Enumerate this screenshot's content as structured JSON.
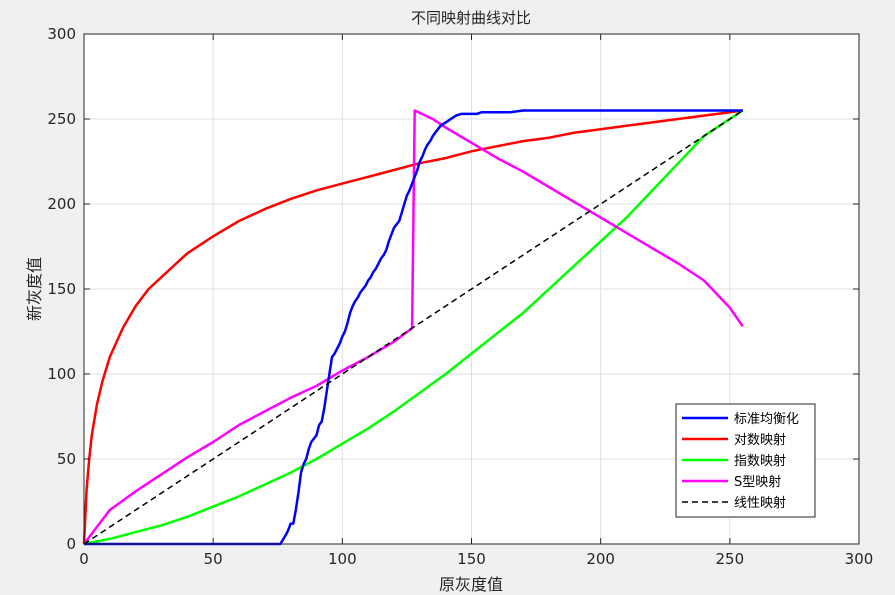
{
  "chart_data": {
    "type": "line",
    "title": "不同映射曲线对比",
    "xlabel": "原灰度值",
    "ylabel": "新灰度值",
    "xlim": [
      0,
      300
    ],
    "ylim": [
      0,
      300
    ],
    "xticks": [
      0,
      50,
      100,
      150,
      200,
      250,
      300
    ],
    "yticks": [
      0,
      50,
      100,
      150,
      200,
      250,
      300
    ],
    "grid": true,
    "legend_position": "bottom-right",
    "series": [
      {
        "name": "标准均衡化",
        "color": "#0000ff",
        "style": "solid",
        "x": [
          0,
          76,
          78,
          79,
          80,
          81,
          82,
          83,
          84,
          85,
          86,
          87,
          88,
          89,
          90,
          91,
          92,
          93,
          94,
          95,
          96,
          97,
          98,
          99,
          100,
          101,
          102,
          103,
          104,
          105,
          106,
          107,
          108,
          109,
          110,
          111,
          112,
          113,
          114,
          115,
          116,
          117,
          118,
          119,
          120,
          121,
          122,
          123,
          124,
          125,
          126,
          127,
          128,
          129,
          130,
          131,
          132,
          133,
          134,
          135,
          136,
          137,
          138,
          139,
          140,
          141,
          142,
          143,
          144,
          146,
          148,
          150,
          152,
          154,
          156,
          158,
          160,
          165,
          170,
          180,
          190,
          200,
          210,
          220,
          230,
          240,
          255
        ],
        "y": [
          0,
          0,
          5,
          8,
          12,
          12,
          20,
          30,
          42,
          47,
          50,
          56,
          60,
          62,
          64,
          70,
          72,
          80,
          90,
          100,
          110,
          112,
          115,
          118,
          122,
          125,
          130,
          136,
          140,
          143,
          145,
          148,
          150,
          152,
          155,
          157,
          160,
          162,
          165,
          168,
          170,
          173,
          178,
          182,
          186,
          188,
          190,
          195,
          200,
          205,
          208,
          212,
          216,
          220,
          225,
          228,
          232,
          235,
          237,
          240,
          242,
          244,
          246,
          247,
          248,
          249,
          250,
          251,
          252,
          253,
          253,
          253,
          253,
          254,
          254,
          254,
          254,
          254,
          255,
          255,
          255,
          255,
          255,
          255,
          255,
          255,
          255
        ]
      },
      {
        "name": "对数映射",
        "color": "#ff0000",
        "style": "solid",
        "x": [
          0,
          1,
          2,
          3,
          5,
          7,
          10,
          15,
          20,
          25,
          30,
          40,
          50,
          60,
          70,
          80,
          90,
          100,
          110,
          120,
          130,
          140,
          150,
          160,
          170,
          180,
          190,
          200,
          210,
          220,
          230,
          240,
          250,
          255
        ],
        "y": [
          0,
          32,
          50,
          64,
          82,
          95,
          110,
          127,
          140,
          150,
          157,
          171,
          181,
          190,
          197,
          203,
          208,
          212,
          216,
          220,
          224,
          227,
          231,
          234,
          237,
          239,
          242,
          244,
          246,
          248,
          250,
          252,
          254,
          255
        ]
      },
      {
        "name": "指数映射",
        "color": "#00ff00",
        "style": "solid",
        "x": [
          0,
          10,
          20,
          30,
          40,
          50,
          60,
          70,
          80,
          90,
          100,
          110,
          120,
          130,
          140,
          150,
          160,
          170,
          180,
          190,
          200,
          210,
          220,
          230,
          240,
          250,
          255
        ],
        "y": [
          0,
          3,
          7,
          11,
          16,
          22,
          28,
          35,
          42,
          50,
          59,
          68,
          78,
          89,
          100,
          112,
          124,
          136,
          150,
          164,
          178,
          192,
          208,
          224,
          240,
          250,
          255
        ]
      },
      {
        "name": "S型映射",
        "color": "#ff00ff",
        "style": "solid",
        "x": [
          0,
          10,
          20,
          30,
          40,
          50,
          60,
          70,
          80,
          90,
          100,
          110,
          120,
          127,
          128,
          135,
          140,
          150,
          160,
          170,
          180,
          190,
          200,
          210,
          220,
          230,
          240,
          245,
          250,
          255
        ],
        "y": [
          0,
          20,
          31,
          41,
          51,
          60,
          70,
          78,
          86,
          93,
          102,
          110,
          119,
          127,
          255,
          250,
          245,
          236,
          227,
          219,
          210,
          201,
          192,
          183,
          174,
          165,
          155,
          147,
          139,
          128
        ]
      },
      {
        "name": "线性映射",
        "color": "#000000",
        "style": "dashed",
        "x": [
          0,
          255
        ],
        "y": [
          0,
          255
        ]
      }
    ]
  }
}
